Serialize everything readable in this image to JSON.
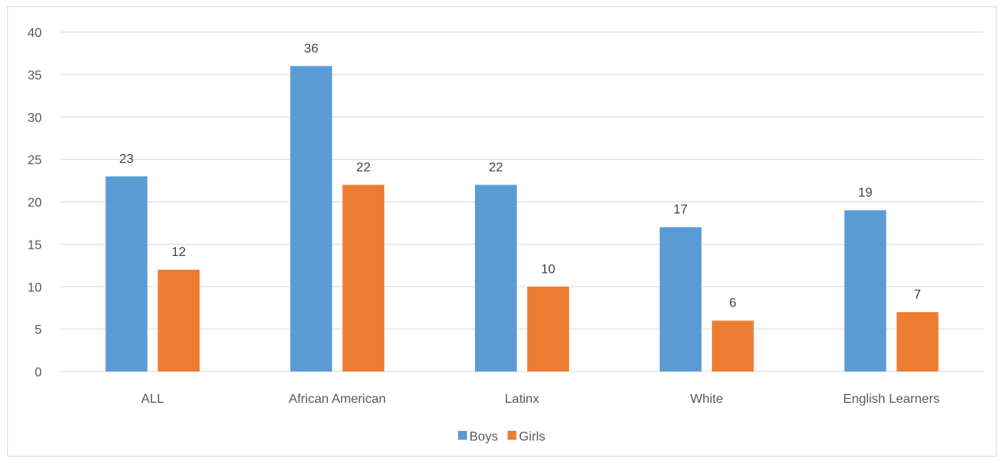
{
  "chart_data": {
    "type": "bar",
    "title": "",
    "xlabel": "",
    "ylabel": "",
    "categories": [
      "ALL",
      "African American",
      "Latinx",
      "White",
      "English Learners"
    ],
    "series": [
      {
        "name": "Boys",
        "color": "#5B9BD5",
        "values": [
          23,
          36,
          22,
          17,
          19
        ]
      },
      {
        "name": "Girls",
        "color": "#ED7D31",
        "values": [
          12,
          22,
          10,
          6,
          7
        ]
      }
    ],
    "ylim": [
      0,
      40
    ],
    "yticks": [
      0,
      5,
      10,
      15,
      20,
      25,
      30,
      35,
      40
    ],
    "grid": true,
    "gridline_color": "#d9d9d9",
    "data_labels": true,
    "legend_position": "bottom"
  }
}
